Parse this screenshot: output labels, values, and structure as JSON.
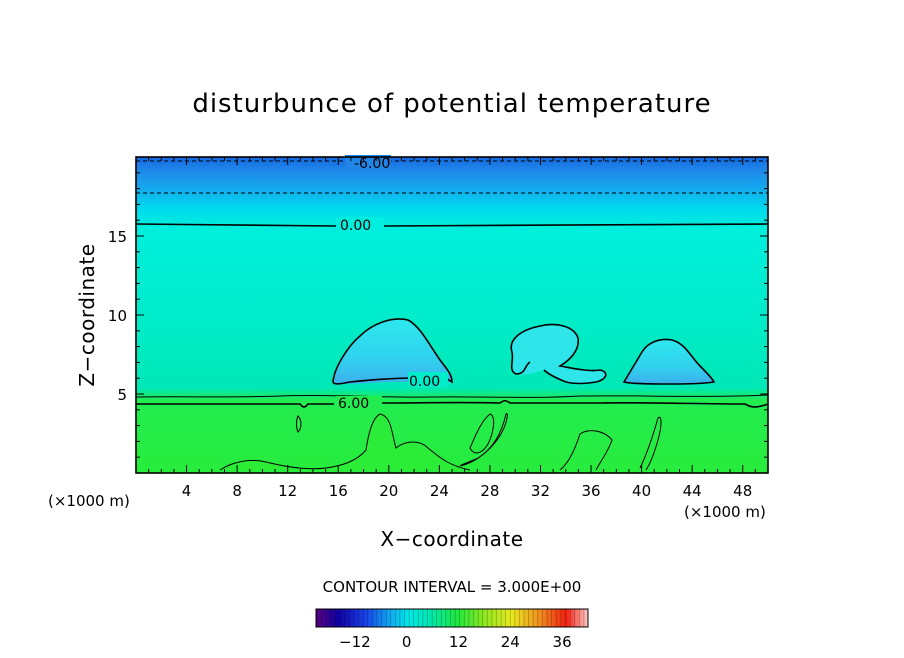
{
  "chart_data": {
    "type": "contour",
    "title": "disturbunce of potential temperature",
    "xlabel": "X−coordinate",
    "ylabel": "Z−coordinate",
    "x_unit_left": "(×1000 m)",
    "x_unit_right": "(×1000 m)",
    "xlim": [
      0,
      50
    ],
    "ylim": [
      0,
      20
    ],
    "x_ticks": [
      4,
      8,
      12,
      16,
      20,
      24,
      28,
      32,
      36,
      40,
      44,
      48
    ],
    "y_ticks": [
      5,
      10,
      15
    ],
    "contour_interval_text": "CONTOUR INTERVAL = 3.000E+00",
    "contour_labels": [
      {
        "text": "-6.00",
        "x": 19,
        "z": 19.5
      },
      {
        "text": "0.00",
        "x": 17.5,
        "z": 15.5
      },
      {
        "text": "0.00",
        "x": 23.3,
        "z": 5.8
      },
      {
        "text": "6.00",
        "x": 17.5,
        "z": 4.5
      }
    ],
    "colorbar": {
      "min": -21,
      "max": 42,
      "ticks": [
        -12,
        0,
        12,
        24,
        36
      ]
    },
    "colors": {
      "top_band": "#1f86e8",
      "upper_band": "#00d4ea",
      "middle_band": "#00ecc4",
      "low_band": "#22ec3e",
      "bubble": "#2ee6ee",
      "bubble_core": "#3cb8ec"
    }
  }
}
